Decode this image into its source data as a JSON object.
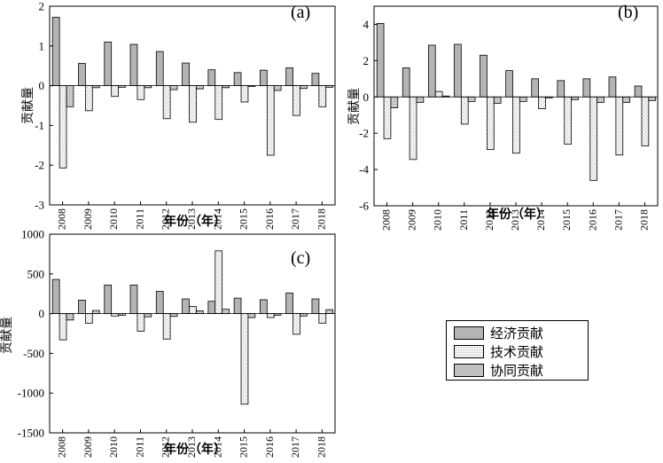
{
  "styles": {
    "economic": {
      "fill": "#b4b4b4",
      "pattern": "solid"
    },
    "technical": {
      "fill": "#f0f0f0",
      "pattern": "light-dots"
    },
    "synergy": {
      "fill": "#d2d2d2",
      "pattern": "dense-dots"
    }
  },
  "legend": {
    "items": [
      {
        "key": "economic",
        "label": "经济贡献"
      },
      {
        "key": "technical",
        "label": "技术贡献"
      },
      {
        "key": "synergy",
        "label": "协同贡献"
      }
    ]
  },
  "chart_data": [
    {
      "panel": "a",
      "type": "bar",
      "title": "(a)",
      "xlabel": "年份（年）",
      "ylabel": "贡献量",
      "categories": [
        "2008",
        "2009",
        "2010",
        "2011",
        "2012",
        "2013",
        "2014",
        "2015",
        "2016",
        "2017",
        "2018"
      ],
      "ylim": [
        -3,
        2
      ],
      "yticks": [
        2,
        1,
        0,
        -1,
        -2,
        -3
      ],
      "series": [
        {
          "key": "economic",
          "name": "经济贡献",
          "values": [
            1.72,
            0.56,
            1.1,
            1.04,
            0.86,
            0.57,
            0.4,
            0.33,
            0.39,
            0.45,
            0.31
          ]
        },
        {
          "key": "technical",
          "name": "技术贡献",
          "values": [
            -2.07,
            -0.63,
            -0.27,
            -0.35,
            -0.83,
            -0.92,
            -0.85,
            -0.41,
            -1.75,
            -0.75,
            -0.53
          ]
        },
        {
          "key": "synergy",
          "name": "协同贡献",
          "values": [
            -0.53,
            -0.05,
            -0.04,
            -0.05,
            -0.1,
            -0.08,
            -0.05,
            -0.02,
            -0.12,
            -0.07,
            -0.04
          ]
        }
      ]
    },
    {
      "panel": "b",
      "type": "bar",
      "title": "(b)",
      "xlabel": "年份（年）",
      "ylabel": "贡献量",
      "categories": [
        "2008",
        "2009",
        "2010",
        "2011",
        "2012",
        "2013",
        "2014",
        "2015",
        "2016",
        "2017",
        "2018"
      ],
      "ylim": [
        -6,
        5
      ],
      "yticks": [
        4,
        2,
        0,
        -2,
        -4,
        -6
      ],
      "series": [
        {
          "key": "economic",
          "name": "经济贡献",
          "values": [
            4.05,
            1.6,
            2.85,
            2.9,
            2.3,
            1.45,
            1.0,
            0.9,
            1.0,
            1.1,
            0.6
          ]
        },
        {
          "key": "technical",
          "name": "技术贡献",
          "values": [
            -2.3,
            -3.45,
            0.3,
            -1.5,
            -2.9,
            -3.1,
            -0.65,
            -2.6,
            -4.6,
            -3.2,
            -2.7
          ]
        },
        {
          "key": "synergy",
          "name": "协同贡献",
          "values": [
            -0.6,
            -0.3,
            0.05,
            -0.25,
            -0.35,
            -0.25,
            -0.05,
            -0.15,
            -0.3,
            -0.3,
            -0.2
          ]
        }
      ]
    },
    {
      "panel": "c",
      "type": "bar",
      "title": "(c)",
      "xlabel": "年份（年）",
      "ylabel": "贡献量",
      "categories": [
        "2008",
        "2009",
        "2010",
        "2011",
        "2012",
        "2013",
        "2014",
        "2015",
        "2016",
        "2017",
        "2018"
      ],
      "ylim": [
        -1500,
        1000
      ],
      "yticks": [
        1000,
        500,
        0,
        -500,
        -1000,
        -1500
      ],
      "series": [
        {
          "key": "economic",
          "name": "经济贡献",
          "values": [
            430,
            170,
            360,
            360,
            280,
            185,
            155,
            195,
            175,
            260,
            185
          ]
        },
        {
          "key": "technical",
          "name": "技术贡献",
          "values": [
            -330,
            -120,
            -30,
            -220,
            -320,
            90,
            790,
            -1140,
            -50,
            -260,
            -120
          ]
        },
        {
          "key": "synergy",
          "name": "协同贡献",
          "values": [
            -80,
            40,
            -20,
            -40,
            -35,
            35,
            55,
            -50,
            -20,
            -30,
            50
          ]
        }
      ]
    }
  ]
}
